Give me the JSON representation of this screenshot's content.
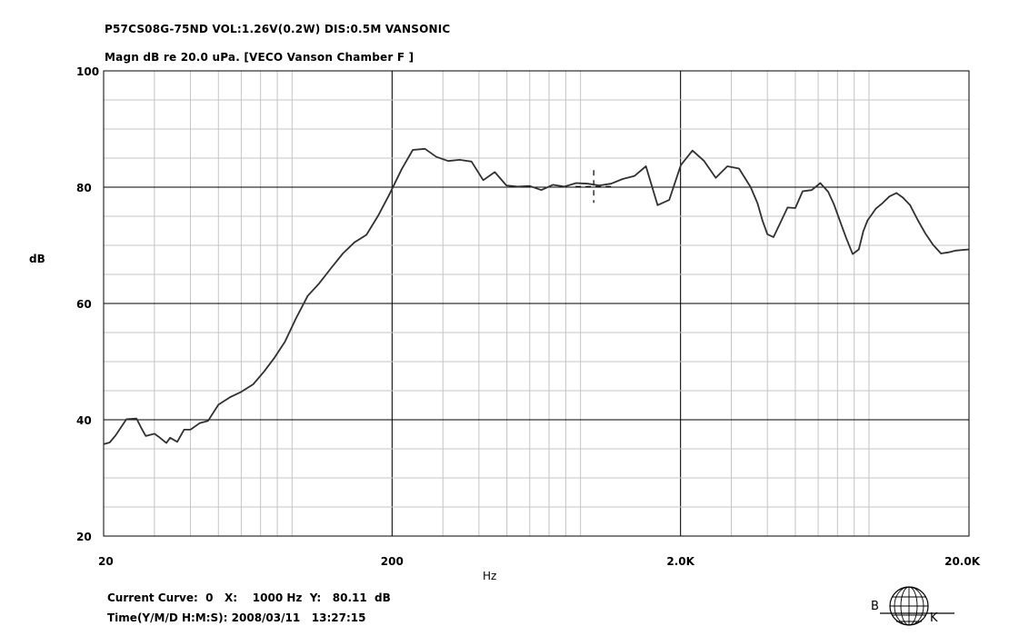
{
  "chart_data": {
    "type": "line",
    "title": "P57CS08G-75ND   VOL:1.26V(0.2W)   DIS:0.5M    VANSONIC",
    "subtitle": "Magn dB re 20.0 uPa.  [VECO Vanson Chamber  F ]",
    "xlabel": "Hz",
    "ylabel": "dB",
    "x_scale": "log",
    "xlim": [
      20,
      20000
    ],
    "ylim": [
      20,
      100
    ],
    "x_tick_labels": [
      "20",
      "200",
      "2.0K",
      "20.0K"
    ],
    "x_tick_values": [
      20,
      200,
      2000,
      20000
    ],
    "y_ticks": [
      20,
      40,
      60,
      80,
      100
    ],
    "grid": true,
    "series": [
      {
        "color": "#303030",
        "x": [
          20,
          21,
          22,
          24,
          26,
          27,
          28,
          30,
          31,
          33,
          34,
          36,
          38,
          40,
          43,
          46,
          50,
          55,
          60,
          66,
          72,
          78,
          85,
          93,
          102,
          112,
          123,
          135,
          148,
          163,
          179,
          196,
          216,
          236,
          260,
          285,
          313,
          343,
          377,
          414,
          454,
          498,
          546,
          600,
          658,
          722,
          792,
          869,
          954,
          1046,
          1148,
          1260,
          1383,
          1517,
          1665,
          1827,
          2005,
          2200,
          2414,
          2649,
          2907,
          3190,
          3500,
          3700,
          3850,
          4000,
          4200,
          4400,
          4700,
          5000,
          5300,
          5700,
          6100,
          6500,
          6800,
          7100,
          7500,
          7900,
          8300,
          8600,
          8900,
          9200,
          9500,
          10000,
          10600,
          11200,
          11800,
          12500,
          13300,
          14100,
          15000,
          16000,
          17000,
          18000,
          19000,
          20000
        ],
        "y": [
          35.8,
          36.1,
          37.3,
          40.1,
          40.2,
          38.6,
          37.2,
          37.6,
          37.1,
          36,
          36.9,
          36.2,
          38.3,
          38.3,
          39.4,
          39.8,
          42.6,
          43.9,
          44.8,
          46.1,
          48.3,
          50.6,
          53.4,
          57.5,
          61.3,
          63.5,
          66.1,
          68.6,
          70.5,
          71.8,
          75.1,
          78.8,
          83.1,
          86.4,
          86.6,
          85.2,
          84.5,
          84.7,
          84.4,
          81.2,
          82.6,
          80.3,
          80.1,
          80.2,
          79.5,
          80.4,
          80.1,
          80.7,
          80.6,
          80.3,
          80.6,
          81.4,
          81.9,
          83.6,
          76.9,
          77.8,
          83.8,
          86.3,
          84.5,
          81.6,
          83.6,
          83.2,
          80,
          77.2,
          74.2,
          71.9,
          71.4,
          73.5,
          76.5,
          76.4,
          79.3,
          79.5,
          80.7,
          79.2,
          77.1,
          74.5,
          71.3,
          68.5,
          69.3,
          72.4,
          74.3,
          75.3,
          76.3,
          77.2,
          78.4,
          79,
          78.2,
          76.9,
          74.3,
          72.1,
          70.1,
          68.6,
          68.8,
          69.1,
          69.2,
          69.3
        ]
      }
    ],
    "cursor": {
      "x": 1000,
      "y": 80.11
    }
  },
  "footer": {
    "current_curve": "Current Curve:  0   X:    1000 Hz  Y:   80.11  dB",
    "time": "Time(Y/M/D H:M:S): 2008/03/11   13:27:15"
  },
  "logo": {
    "left_letter": "B",
    "right_letter": "K",
    "icon": "globe-logo-icon"
  }
}
